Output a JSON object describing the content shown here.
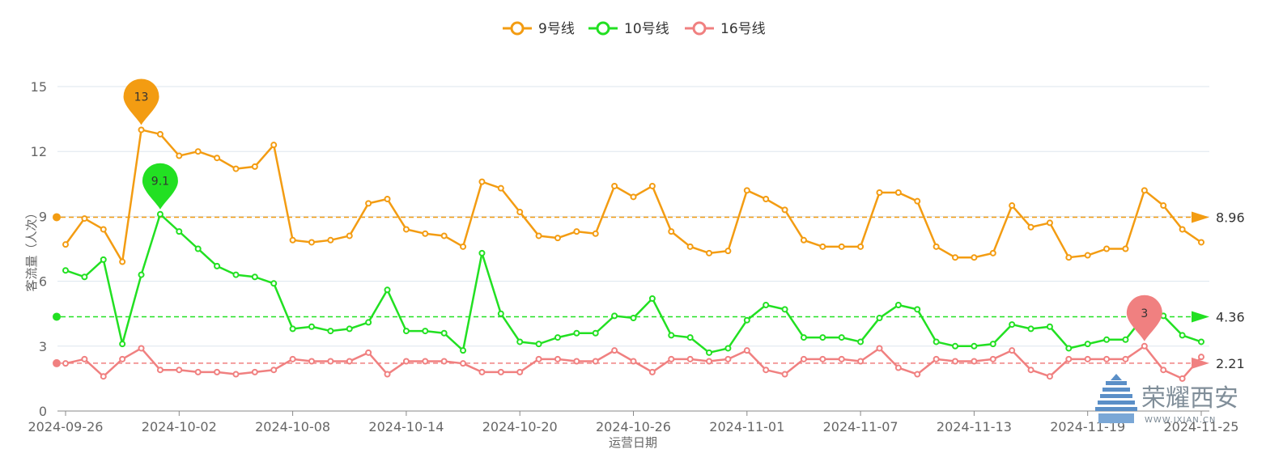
{
  "chart_data": {
    "type": "line",
    "xlabel": "运营日期",
    "ylabel": "客流量（人次）",
    "ylim": [
      0,
      15
    ],
    "yticks": [
      0,
      3,
      6,
      9,
      12,
      15
    ],
    "grid": true,
    "legend_position": "top-center",
    "xtick_labels": [
      "2024-09-26",
      "2024-10-02",
      "2024-10-08",
      "2024-10-14",
      "2024-10-20",
      "2024-10-26",
      "2024-11-01",
      "2024-11-07",
      "2024-11-13",
      "2024-11-19",
      "2024-11-25"
    ],
    "x": [
      "2024-09-26",
      "2024-09-27",
      "2024-09-28",
      "2024-09-29",
      "2024-09-30",
      "2024-10-01",
      "2024-10-02",
      "2024-10-03",
      "2024-10-04",
      "2024-10-05",
      "2024-10-06",
      "2024-10-07",
      "2024-10-08",
      "2024-10-09",
      "2024-10-10",
      "2024-10-11",
      "2024-10-12",
      "2024-10-13",
      "2024-10-14",
      "2024-10-15",
      "2024-10-16",
      "2024-10-17",
      "2024-10-18",
      "2024-10-19",
      "2024-10-20",
      "2024-10-21",
      "2024-10-22",
      "2024-10-23",
      "2024-10-24",
      "2024-10-25",
      "2024-10-26",
      "2024-10-27",
      "2024-10-28",
      "2024-10-29",
      "2024-10-30",
      "2024-10-31",
      "2024-11-01",
      "2024-11-02",
      "2024-11-03",
      "2024-11-04",
      "2024-11-05",
      "2024-11-06",
      "2024-11-07",
      "2024-11-08",
      "2024-11-09",
      "2024-11-10",
      "2024-11-11",
      "2024-11-12",
      "2024-11-13",
      "2024-11-14",
      "2024-11-15",
      "2024-11-16",
      "2024-11-17",
      "2024-11-18",
      "2024-11-19",
      "2024-11-20",
      "2024-11-21",
      "2024-11-22",
      "2024-11-23",
      "2024-11-24",
      "2024-11-25"
    ],
    "series": [
      {
        "name": "9号线",
        "color": "#f39c12",
        "values": [
          7.7,
          8.9,
          8.4,
          6.9,
          13.0,
          12.8,
          11.8,
          12.0,
          11.7,
          11.2,
          11.3,
          12.3,
          7.9,
          7.8,
          7.9,
          8.1,
          9.6,
          9.8,
          8.4,
          8.2,
          8.1,
          7.6,
          10.6,
          10.3,
          9.2,
          8.1,
          8.0,
          8.3,
          8.2,
          10.4,
          9.9,
          10.4,
          8.3,
          7.6,
          7.3,
          7.4,
          10.2,
          9.8,
          9.3,
          7.9,
          7.6,
          7.6,
          7.6,
          10.1,
          10.1,
          9.7,
          7.6,
          7.1,
          7.1,
          7.3,
          9.5,
          8.5,
          8.7,
          7.1,
          7.2,
          7.5,
          7.5,
          10.2,
          9.5,
          8.4,
          7.8
        ],
        "average": 8.96,
        "max_label": "13"
      },
      {
        "name": "10号线",
        "color": "#22e022",
        "values": [
          6.5,
          6.2,
          7.0,
          3.1,
          6.3,
          9.1,
          8.3,
          7.5,
          6.7,
          6.3,
          6.2,
          5.9,
          3.8,
          3.9,
          3.7,
          3.8,
          4.1,
          5.6,
          3.7,
          3.7,
          3.6,
          2.8,
          7.3,
          4.5,
          3.2,
          3.1,
          3.4,
          3.6,
          3.6,
          4.4,
          4.3,
          5.2,
          3.5,
          3.4,
          2.7,
          2.9,
          4.2,
          4.9,
          4.7,
          3.4,
          3.4,
          3.4,
          3.2,
          4.3,
          4.9,
          4.7,
          3.2,
          3.0,
          3.0,
          3.1,
          4.0,
          3.8,
          3.9,
          2.9,
          3.1,
          3.3,
          3.3,
          4.4,
          4.4,
          3.5,
          3.2
        ],
        "average": 4.36,
        "max_label": "9.1"
      },
      {
        "name": "16号线",
        "color": "#f08080",
        "values": [
          2.2,
          2.4,
          1.6,
          2.4,
          2.9,
          1.9,
          1.9,
          1.8,
          1.8,
          1.7,
          1.8,
          1.9,
          2.4,
          2.3,
          2.3,
          2.3,
          2.7,
          1.7,
          2.3,
          2.3,
          2.3,
          2.2,
          1.8,
          1.8,
          1.8,
          2.4,
          2.4,
          2.3,
          2.3,
          2.8,
          2.3,
          1.8,
          2.4,
          2.4,
          2.3,
          2.4,
          2.8,
          1.9,
          1.7,
          2.4,
          2.4,
          2.4,
          2.3,
          2.9,
          2.0,
          1.7,
          2.4,
          2.3,
          2.3,
          2.4,
          2.8,
          1.9,
          1.6,
          2.4,
          2.4,
          2.4,
          2.4,
          3.0,
          1.9,
          1.5,
          2.5
        ],
        "average": 2.21,
        "max_label": "3"
      }
    ]
  },
  "watermark": {
    "name": "荣耀西安",
    "url": "WWW.IXIAN.CN"
  }
}
